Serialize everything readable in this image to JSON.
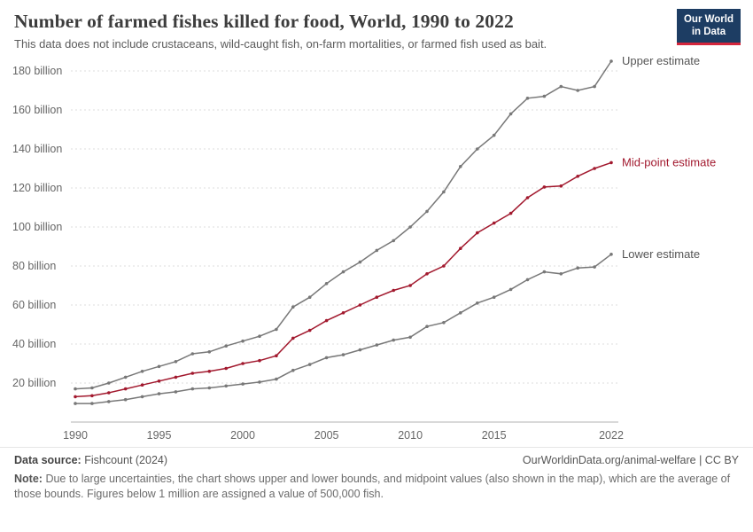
{
  "header": {
    "title": "Number of farmed fishes killed for food, World, 1990 to 2022",
    "subtitle": "This data does not include crustaceans, wild-caught fish, on-farm mortalities, or farmed fish used as bait."
  },
  "logo": {
    "line1": "Our World",
    "line2": "in Data",
    "bg_color": "#1d3d63",
    "accent_color": "#d4263c"
  },
  "chart_data": {
    "type": "line",
    "title": "Number of farmed fishes killed for food, World, 1990 to 2022",
    "xlabel": "",
    "ylabel": "",
    "x": [
      1990,
      1991,
      1992,
      1993,
      1994,
      1995,
      1996,
      1997,
      1998,
      1999,
      2000,
      2001,
      2002,
      2003,
      2004,
      2005,
      2006,
      2007,
      2008,
      2009,
      2010,
      2011,
      2012,
      2013,
      2014,
      2015,
      2016,
      2017,
      2018,
      2019,
      2020,
      2021,
      2022
    ],
    "series": [
      {
        "name": "Upper estimate",
        "color": "#787878",
        "label_color": "#555555",
        "values": [
          17,
          17.5,
          20,
          23,
          26,
          28.5,
          31,
          35,
          36,
          39,
          41.5,
          44,
          47.5,
          59,
          64,
          71,
          77,
          82,
          88,
          93,
          100,
          108,
          118,
          131,
          140,
          147,
          158,
          166,
          167,
          172,
          170,
          172,
          185
        ]
      },
      {
        "name": "Mid-point estimate",
        "color": "#a2192e",
        "label_color": "#a2192e",
        "values": [
          13,
          13.5,
          15,
          17,
          19,
          21,
          23,
          25,
          26,
          27.5,
          30,
          31.5,
          34,
          43,
          47,
          52,
          56,
          60,
          64,
          67.5,
          70,
          76,
          80,
          89,
          97,
          102,
          107,
          115,
          120.5,
          121,
          126,
          130,
          133
        ]
      },
      {
        "name": "Lower estimate",
        "color": "#787878",
        "label_color": "#555555",
        "values": [
          9.5,
          9.5,
          10.5,
          11.5,
          13,
          14.5,
          15.5,
          17,
          17.5,
          18.5,
          19.5,
          20.5,
          22,
          26.5,
          29.5,
          33,
          34.5,
          37,
          39.5,
          42,
          43.5,
          49,
          51,
          56,
          61,
          64,
          68,
          73,
          77,
          76,
          79,
          79.5,
          86
        ]
      }
    ],
    "yticks": [
      20,
      40,
      60,
      80,
      100,
      120,
      140,
      160,
      180
    ],
    "ytick_suffix": " billion",
    "xticks": [
      1990,
      1995,
      2000,
      2005,
      2010,
      2015,
      2022
    ],
    "ylim": [
      0,
      185
    ],
    "grid": "dashed-horizontal",
    "legend_position": "right-end-labels"
  },
  "footer": {
    "source_label": "Data source:",
    "source_value": "Fishcount (2024)",
    "credit": "OurWorldinData.org/animal-welfare | CC BY",
    "note_label": "Note:",
    "note_text": "Due to large uncertainties, the chart shows upper and lower bounds, and midpoint values (also shown in the map), which are the average of those bounds. Figures below 1 million are assigned a value of 500,000 fish."
  }
}
